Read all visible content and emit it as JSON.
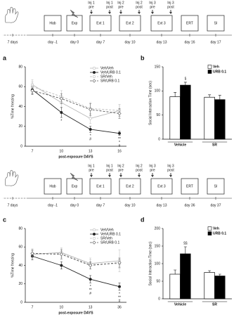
{
  "timelines": [
    {
      "boxes": [
        "Hab",
        "Exp",
        "Ext 1",
        "Ext 2",
        "Ext 3",
        "ERT",
        "SI"
      ],
      "days": [
        "7 days",
        "day -1",
        "day 0",
        "day 7",
        "day 10",
        "day 13",
        "day 16",
        "day 17"
      ],
      "injections": [
        {
          "top": "Inj 1",
          "bottom": "pre"
        },
        {
          "top": "Inj 1",
          "bottom": "post"
        },
        {
          "top": "Inj 2",
          "bottom": "pre"
        },
        {
          "top": "Inj 2",
          "bottom": "post"
        },
        {
          "top": "Inj 3",
          "bottom": "pre"
        },
        {
          "top": "Inj 3",
          "bottom": "post"
        }
      ]
    },
    {
      "boxes": [
        "Hab",
        "Exp",
        "Ext 1",
        "Ext 2",
        "Ext 3",
        "ERT",
        "SI"
      ],
      "days": [
        "7 days",
        "day -1",
        "day 0",
        "day 7",
        "day 10",
        "day 13",
        "day 36",
        "day 37"
      ],
      "injections": [
        {
          "top": "Inj 1",
          "bottom": "pre"
        },
        {
          "top": "Inj 1",
          "bottom": "post"
        },
        {
          "top": "Inj 2",
          "bottom": "pre"
        },
        {
          "top": "Inj 2",
          "bottom": "post"
        },
        {
          "top": "Inj 3",
          "bottom": "pre"
        },
        {
          "top": "Inj 3",
          "bottom": "post"
        }
      ]
    }
  ],
  "chart_data": [
    {
      "type": "line",
      "panel": "a",
      "categories": [
        "7",
        "10",
        "13",
        "16"
      ],
      "x_label": "post-exposure DAYS",
      "y_label": "%Time freezing",
      "ylim": [
        0,
        80
      ],
      "yticks": [
        0,
        20,
        40,
        60,
        80
      ],
      "series": [
        {
          "name": "Veh/Veh",
          "color": "#b8b8b8",
          "dash": false,
          "filled": false,
          "values": [
            62,
            44,
            28,
            36
          ],
          "errors": [
            5,
            5,
            5,
            6
          ]
        },
        {
          "name": "Veh/URB 0.1",
          "color": "#222222",
          "dash": false,
          "filled": true,
          "values": [
            57,
            34,
            17,
            13
          ],
          "errors": [
            4,
            5,
            3,
            2
          ]
        },
        {
          "name": "SR/Veh",
          "color": "#bbbbbb",
          "dash": true,
          "filled": false,
          "values": [
            60,
            50,
            38,
            36
          ],
          "errors": [
            5,
            6,
            6,
            6
          ]
        },
        {
          "name": "SR/URB 0.1",
          "color": "#555555",
          "dash": true,
          "filled": false,
          "values": [
            56,
            48,
            37,
            33
          ],
          "errors": [
            4,
            5,
            6,
            5
          ]
        }
      ],
      "annotations": [
        {
          "category": "10",
          "text": "*"
        },
        {
          "category": "13",
          "text": "*"
        },
        {
          "category": "13",
          "text": "#"
        },
        {
          "category": "16",
          "text": "**"
        },
        {
          "category": "16",
          "text": "*"
        },
        {
          "category": "16",
          "text": "#"
        }
      ]
    },
    {
      "type": "bar",
      "panel": "b",
      "categories": [
        "Vehicle",
        "SR"
      ],
      "y_label": "Social Interaction Time (sec)",
      "ylim": [
        0,
        150
      ],
      "yticks": [
        0,
        50,
        100,
        150
      ],
      "series": [
        {
          "name": "Veh",
          "color": "#ffffff",
          "values": [
            88,
            87
          ],
          "errors": [
            9,
            5
          ]
        },
        {
          "name": "URB 0.1",
          "color": "#000000",
          "values": [
            112,
            82
          ],
          "errors": [
            6,
            9
          ]
        }
      ],
      "annotations": [
        {
          "category": "Vehicle",
          "series": "URB 0.1",
          "text": "§"
        }
      ]
    },
    {
      "type": "line",
      "panel": "c",
      "categories": [
        "7",
        "10",
        "13",
        "36"
      ],
      "x_label": "post-exposure DAYS",
      "y_label": "%Time freezing",
      "ylim": [
        0,
        80
      ],
      "yticks": [
        0,
        20,
        40,
        60,
        80
      ],
      "series": [
        {
          "name": "Veh/Veh",
          "color": "#b8b8b8",
          "dash": false,
          "filled": false,
          "values": [
            52,
            54,
            42,
            45
          ],
          "errors": [
            4,
            5,
            6,
            12
          ]
        },
        {
          "name": "Veh/URB 0.1",
          "color": "#222222",
          "dash": false,
          "filled": true,
          "values": [
            50,
            40,
            25,
            17
          ],
          "errors": [
            4,
            4,
            4,
            4
          ]
        },
        {
          "name": "SR/Veh",
          "color": "#bbbbbb",
          "dash": true,
          "filled": false,
          "values": [
            53,
            53,
            41,
            42
          ],
          "errors": [
            5,
            5,
            5,
            5
          ]
        },
        {
          "name": "SR/URB 0.1",
          "color": "#555555",
          "dash": true,
          "filled": false,
          "values": [
            53,
            52,
            40,
            43
          ],
          "errors": [
            4,
            5,
            4,
            5
          ]
        }
      ],
      "annotations": [
        {
          "category": "13",
          "text": "*"
        },
        {
          "category": "13",
          "text": "**"
        },
        {
          "category": "13",
          "text": "#"
        },
        {
          "category": "36",
          "text": "*"
        },
        {
          "category": "36",
          "text": "**"
        },
        {
          "category": "36",
          "text": "#"
        }
      ]
    },
    {
      "type": "bar",
      "panel": "d",
      "categories": [
        "Vehicle",
        "SR"
      ],
      "y_label": "Social Interaction Time (sec)",
      "ylim": [
        0,
        200
      ],
      "yticks": [
        0,
        50,
        100,
        150,
        200
      ],
      "series": [
        {
          "name": "Veh",
          "color": "#ffffff",
          "values": [
            70,
            75
          ],
          "errors": [
            12,
            5
          ]
        },
        {
          "name": "URB 0.1",
          "color": "#000000",
          "values": [
            128,
            65
          ],
          "errors": [
            20,
            5
          ]
        }
      ],
      "annotations": [
        {
          "category": "Vehicle",
          "series": "URB 0.1",
          "text": "§§"
        }
      ]
    }
  ]
}
